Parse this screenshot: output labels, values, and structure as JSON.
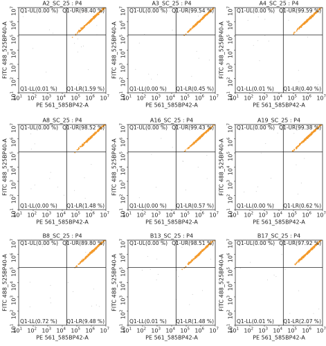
{
  "chart_data": [
    {
      "type": "quadrant",
      "title": "A2_SC_25 : P4",
      "xlabel": "PE 561_585BP42-A",
      "ylabel": "FITC 488_525BP40-A",
      "xscale": "log",
      "yscale": "log",
      "xlim": [
        10,
        10000000
      ],
      "ylim": [
        10,
        10000000
      ],
      "xticks": [
        {
          "value": 10,
          "label": "10",
          "exponent": "1"
        },
        {
          "value": 100,
          "label": "10",
          "exponent": "2"
        },
        {
          "value": 1000,
          "label": "10",
          "exponent": "3"
        },
        {
          "value": 10000,
          "label": "10",
          "exponent": "4"
        },
        {
          "value": 100000,
          "label": "10",
          "exponent": "5"
        },
        {
          "value": 1000000,
          "label": "10",
          "exponent": "6"
        },
        {
          "value": 10000000,
          "label": "10",
          "exponent": "7"
        }
      ],
      "yticks": [
        {
          "value": 10,
          "label": "10",
          "exponent": "1"
        },
        {
          "value": 100,
          "label": "10",
          "exponent": "2"
        },
        {
          "value": 1000,
          "label": "10",
          "exponent": "3"
        },
        {
          "value": 10000,
          "label": "10",
          "exponent": "4"
        },
        {
          "value": 100000,
          "label": "10",
          "exponent": "5"
        },
        {
          "value": 1000000,
          "label": "10",
          "exponent": "6"
        },
        {
          "value": 10000000,
          "label": "10",
          "exponent": "7"
        }
      ],
      "gate_x": 20000,
      "gate_y": 120000,
      "color": "#f39a2c",
      "quadrants": {
        "UL": "Q1-UL(0.00 %)",
        "UR": "Q1-UR(98.40 %)",
        "LL": "Q1-LL(0.01 %)",
        "LR": "Q1-LR(1.59 %)"
      }
    },
    {
      "type": "quadrant",
      "title": "A3_SC_25 : P4",
      "xlabel": "PE 561_585BP42-A",
      "ylabel": "FITC 488_525BP40-A",
      "xscale": "log",
      "yscale": "log",
      "xlim": [
        10,
        10000000
      ],
      "ylim": [
        10,
        10000000
      ],
      "xticks": [
        {
          "value": 10,
          "label": "10",
          "exponent": "1"
        },
        {
          "value": 100,
          "label": "10",
          "exponent": "2"
        },
        {
          "value": 1000,
          "label": "10",
          "exponent": "3"
        },
        {
          "value": 10000,
          "label": "10",
          "exponent": "4"
        },
        {
          "value": 100000,
          "label": "10",
          "exponent": "5"
        },
        {
          "value": 1000000,
          "label": "10",
          "exponent": "6"
        },
        {
          "value": 10000000,
          "label": "10",
          "exponent": "7"
        }
      ],
      "yticks": [
        {
          "value": 10,
          "label": "10",
          "exponent": "1"
        },
        {
          "value": 100,
          "label": "10",
          "exponent": "2"
        },
        {
          "value": 1000,
          "label": "10",
          "exponent": "3"
        },
        {
          "value": 10000,
          "label": "10",
          "exponent": "4"
        },
        {
          "value": 100000,
          "label": "10",
          "exponent": "5"
        },
        {
          "value": 1000000,
          "label": "10",
          "exponent": "6"
        },
        {
          "value": 10000000,
          "label": "10",
          "exponent": "7"
        }
      ],
      "gate_x": 20000,
      "gate_y": 120000,
      "color": "#f39a2c",
      "quadrants": {
        "UL": "Q1-UL(0.00 %)",
        "UR": "Q1-UR(99.54 %)",
        "LL": "Q1-LL(0.00 %)",
        "LR": "Q1-LR(0.45 %)"
      }
    },
    {
      "type": "quadrant",
      "title": "A4_SC_25 : P4",
      "xlabel": "PE 561_585BP42-A",
      "ylabel": "FITC 488_525BP40-A",
      "xscale": "log",
      "yscale": "log",
      "xlim": [
        10,
        10000000
      ],
      "ylim": [
        10,
        10000000
      ],
      "xticks": [
        {
          "value": 10,
          "label": "10",
          "exponent": "1"
        },
        {
          "value": 100,
          "label": "10",
          "exponent": "2"
        },
        {
          "value": 1000,
          "label": "10",
          "exponent": "3"
        },
        {
          "value": 10000,
          "label": "10",
          "exponent": "4"
        },
        {
          "value": 100000,
          "label": "10",
          "exponent": "5"
        },
        {
          "value": 1000000,
          "label": "10",
          "exponent": "6"
        },
        {
          "value": 10000000,
          "label": "10",
          "exponent": "7"
        }
      ],
      "yticks": [
        {
          "value": 10,
          "label": "10",
          "exponent": "1"
        },
        {
          "value": 100,
          "label": "10",
          "exponent": "2"
        },
        {
          "value": 1000,
          "label": "10",
          "exponent": "3"
        },
        {
          "value": 10000,
          "label": "10",
          "exponent": "4"
        },
        {
          "value": 100000,
          "label": "10",
          "exponent": "5"
        },
        {
          "value": 1000000,
          "label": "10",
          "exponent": "6"
        },
        {
          "value": 10000000,
          "label": "10",
          "exponent": "7"
        }
      ],
      "gate_x": 20000,
      "gate_y": 120000,
      "color": "#f39a2c",
      "quadrants": {
        "UL": "Q1-UL(0.00 %)",
        "UR": "Q1-UR(99.59 %)",
        "LL": "Q1-LL(0.01 %)",
        "LR": "Q1-LR(0.40 %)"
      }
    },
    {
      "type": "quadrant",
      "title": "A8_SC_25 : P4",
      "xlabel": "PE 561_585BP42-A",
      "ylabel": "FITC 488_525BP40-A",
      "xscale": "log",
      "yscale": "log",
      "xlim": [
        10,
        10000000
      ],
      "ylim": [
        10,
        10000000
      ],
      "xticks": [
        {
          "value": 10,
          "label": "10",
          "exponent": "1"
        },
        {
          "value": 100,
          "label": "10",
          "exponent": "2"
        },
        {
          "value": 1000,
          "label": "10",
          "exponent": "3"
        },
        {
          "value": 10000,
          "label": "10",
          "exponent": "4"
        },
        {
          "value": 100000,
          "label": "10",
          "exponent": "5"
        },
        {
          "value": 1000000,
          "label": "10",
          "exponent": "6"
        },
        {
          "value": 10000000,
          "label": "10",
          "exponent": "7"
        }
      ],
      "yticks": [
        {
          "value": 10,
          "label": "10",
          "exponent": "1"
        },
        {
          "value": 100,
          "label": "10",
          "exponent": "2"
        },
        {
          "value": 1000,
          "label": "10",
          "exponent": "3"
        },
        {
          "value": 10000,
          "label": "10",
          "exponent": "4"
        },
        {
          "value": 100000,
          "label": "10",
          "exponent": "5"
        },
        {
          "value": 1000000,
          "label": "10",
          "exponent": "6"
        },
        {
          "value": 10000000,
          "label": "10",
          "exponent": "7"
        }
      ],
      "gate_x": 20000,
      "gate_y": 120000,
      "color": "#f39a2c",
      "quadrants": {
        "UL": "Q1-UL(0.00 %)",
        "UR": "Q1-UR(98.52 %)",
        "LL": "Q1-LL(0.00 %)",
        "LR": "Q1-LR(1.48 %)"
      }
    },
    {
      "type": "quadrant",
      "title": "A16_SC_25 : P4",
      "xlabel": "PE 561_585BP42-A",
      "ylabel": "FITC 488_525BP40-A",
      "xscale": "log",
      "yscale": "log",
      "xlim": [
        10,
        10000000
      ],
      "ylim": [
        10,
        10000000
      ],
      "xticks": [
        {
          "value": 10,
          "label": "10",
          "exponent": "1"
        },
        {
          "value": 100,
          "label": "10",
          "exponent": "2"
        },
        {
          "value": 1000,
          "label": "10",
          "exponent": "3"
        },
        {
          "value": 10000,
          "label": "10",
          "exponent": "4"
        },
        {
          "value": 100000,
          "label": "10",
          "exponent": "5"
        },
        {
          "value": 1000000,
          "label": "10",
          "exponent": "6"
        },
        {
          "value": 10000000,
          "label": "10",
          "exponent": "7"
        }
      ],
      "yticks": [
        {
          "value": 10,
          "label": "10",
          "exponent": "1"
        },
        {
          "value": 100,
          "label": "10",
          "exponent": "2"
        },
        {
          "value": 1000,
          "label": "10",
          "exponent": "3"
        },
        {
          "value": 10000,
          "label": "10",
          "exponent": "4"
        },
        {
          "value": 100000,
          "label": "10",
          "exponent": "5"
        },
        {
          "value": 1000000,
          "label": "10",
          "exponent": "6"
        },
        {
          "value": 10000000,
          "label": "10",
          "exponent": "7"
        }
      ],
      "gate_x": 20000,
      "gate_y": 120000,
      "color": "#f39a2c",
      "quadrants": {
        "UL": "Q1-UL(0.00 %)",
        "UR": "Q1-UR(99.43 %)",
        "LL": "Q1-LL(0.00 %)",
        "LR": "Q1-LR(0.57 %)"
      }
    },
    {
      "type": "quadrant",
      "title": "A19_SC_25 : P4",
      "xlabel": "PE 561_585BP42-A",
      "ylabel": "FITC 488_525BP40-A",
      "xscale": "log",
      "yscale": "log",
      "xlim": [
        10,
        10000000
      ],
      "ylim": [
        10,
        10000000
      ],
      "xticks": [
        {
          "value": 10,
          "label": "10",
          "exponent": "1"
        },
        {
          "value": 100,
          "label": "10",
          "exponent": "2"
        },
        {
          "value": 1000,
          "label": "10",
          "exponent": "3"
        },
        {
          "value": 10000,
          "label": "10",
          "exponent": "4"
        },
        {
          "value": 100000,
          "label": "10",
          "exponent": "5"
        },
        {
          "value": 1000000,
          "label": "10",
          "exponent": "6"
        },
        {
          "value": 10000000,
          "label": "10",
          "exponent": "7"
        }
      ],
      "yticks": [
        {
          "value": 10,
          "label": "10",
          "exponent": "1"
        },
        {
          "value": 100,
          "label": "10",
          "exponent": "2"
        },
        {
          "value": 1000,
          "label": "10",
          "exponent": "3"
        },
        {
          "value": 10000,
          "label": "10",
          "exponent": "4"
        },
        {
          "value": 100000,
          "label": "10",
          "exponent": "5"
        },
        {
          "value": 1000000,
          "label": "10",
          "exponent": "6"
        },
        {
          "value": 10000000,
          "label": "10",
          "exponent": "7"
        }
      ],
      "gate_x": 20000,
      "gate_y": 120000,
      "color": "#f39a2c",
      "quadrants": {
        "UL": "Q1-UL(0.00 %)",
        "UR": "Q1-UR(99.38 %)",
        "LL": "Q1-LL(0.00 %)",
        "LR": "Q1-LR(0.62 %)"
      }
    },
    {
      "type": "quadrant",
      "title": "B8_SC_25 : P4",
      "xlabel": "PE 561_585BP42-A",
      "ylabel": "FITC 488_525BP40-A",
      "xscale": "log",
      "yscale": "log",
      "xlim": [
        10,
        10000000
      ],
      "ylim": [
        10,
        10000000
      ],
      "xticks": [
        {
          "value": 10,
          "label": "10",
          "exponent": "1"
        },
        {
          "value": 100,
          "label": "10",
          "exponent": "2"
        },
        {
          "value": 1000,
          "label": "10",
          "exponent": "3"
        },
        {
          "value": 10000,
          "label": "10",
          "exponent": "4"
        },
        {
          "value": 100000,
          "label": "10",
          "exponent": "5"
        },
        {
          "value": 1000000,
          "label": "10",
          "exponent": "6"
        },
        {
          "value": 10000000,
          "label": "10",
          "exponent": "7"
        }
      ],
      "yticks": [
        {
          "value": 10,
          "label": "10",
          "exponent": "1"
        },
        {
          "value": 100,
          "label": "10",
          "exponent": "2"
        },
        {
          "value": 1000,
          "label": "10",
          "exponent": "3"
        },
        {
          "value": 10000,
          "label": "10",
          "exponent": "4"
        },
        {
          "value": 100000,
          "label": "10",
          "exponent": "5"
        },
        {
          "value": 1000000,
          "label": "10",
          "exponent": "6"
        },
        {
          "value": 10000000,
          "label": "10",
          "exponent": "7"
        }
      ],
      "gate_x": 20000,
      "gate_y": 120000,
      "color": "#f39a2c",
      "quadrants": {
        "UL": "Q1-UL(0.00 %)",
        "UR": "Q1-UR(89.80 %)",
        "LL": "Q1-LL(0.72 %)",
        "LR": "Q1-LR(9.48 %)"
      }
    },
    {
      "type": "quadrant",
      "title": "B13_SC_25 : P4",
      "xlabel": "PE 561_585BP42-A",
      "ylabel": "FITC 488_525BP40-A",
      "xscale": "log",
      "yscale": "log",
      "xlim": [
        10,
        10000000
      ],
      "ylim": [
        10,
        10000000
      ],
      "xticks": [
        {
          "value": 10,
          "label": "10",
          "exponent": "1"
        },
        {
          "value": 100,
          "label": "10",
          "exponent": "2"
        },
        {
          "value": 1000,
          "label": "10",
          "exponent": "3"
        },
        {
          "value": 10000,
          "label": "10",
          "exponent": "4"
        },
        {
          "value": 100000,
          "label": "10",
          "exponent": "5"
        },
        {
          "value": 1000000,
          "label": "10",
          "exponent": "6"
        },
        {
          "value": 10000000,
          "label": "10",
          "exponent": "7"
        }
      ],
      "yticks": [
        {
          "value": 10,
          "label": "10",
          "exponent": "1"
        },
        {
          "value": 100,
          "label": "10",
          "exponent": "2"
        },
        {
          "value": 1000,
          "label": "10",
          "exponent": "3"
        },
        {
          "value": 10000,
          "label": "10",
          "exponent": "4"
        },
        {
          "value": 100000,
          "label": "10",
          "exponent": "5"
        },
        {
          "value": 1000000,
          "label": "10",
          "exponent": "6"
        },
        {
          "value": 10000000,
          "label": "10",
          "exponent": "7"
        }
      ],
      "gate_x": 20000,
      "gate_y": 120000,
      "color": "#f39a2c",
      "quadrants": {
        "UL": "Q1-UL(0.00 %)",
        "UR": "Q1-UR(98.51 %)",
        "LL": "Q1-LL(0.01 %)",
        "LR": "Q1-LR(1.48 %)"
      }
    },
    {
      "type": "quadrant",
      "title": "B17_SC_25 : P4",
      "xlabel": "PE 561_585BP42-A",
      "ylabel": "FITC 488_525BP40-A",
      "xscale": "log",
      "yscale": "log",
      "xlim": [
        10,
        10000000
      ],
      "ylim": [
        10,
        10000000
      ],
      "xticks": [
        {
          "value": 10,
          "label": "10",
          "exponent": "1"
        },
        {
          "value": 100,
          "label": "10",
          "exponent": "2"
        },
        {
          "value": 1000,
          "label": "10",
          "exponent": "3"
        },
        {
          "value": 10000,
          "label": "10",
          "exponent": "4"
        },
        {
          "value": 100000,
          "label": "10",
          "exponent": "5"
        },
        {
          "value": 1000000,
          "label": "10",
          "exponent": "6"
        },
        {
          "value": 10000000,
          "label": "10",
          "exponent": "7"
        }
      ],
      "yticks": [
        {
          "value": 10,
          "label": "10",
          "exponent": "1"
        },
        {
          "value": 100,
          "label": "10",
          "exponent": "2"
        },
        {
          "value": 1000,
          "label": "10",
          "exponent": "3"
        },
        {
          "value": 10000,
          "label": "10",
          "exponent": "4"
        },
        {
          "value": 100000,
          "label": "10",
          "exponent": "5"
        },
        {
          "value": 1000000,
          "label": "10",
          "exponent": "6"
        },
        {
          "value": 10000000,
          "label": "10",
          "exponent": "7"
        }
      ],
      "gate_x": 20000,
      "gate_y": 120000,
      "color": "#f39a2c",
      "quadrants": {
        "UL": "Q1-UL(0.00 %)",
        "UR": "Q1-UR(97.92 %)",
        "LL": "Q1-LL(0.01 %)",
        "LR": "Q1-LR(2.07 %)"
      }
    }
  ]
}
